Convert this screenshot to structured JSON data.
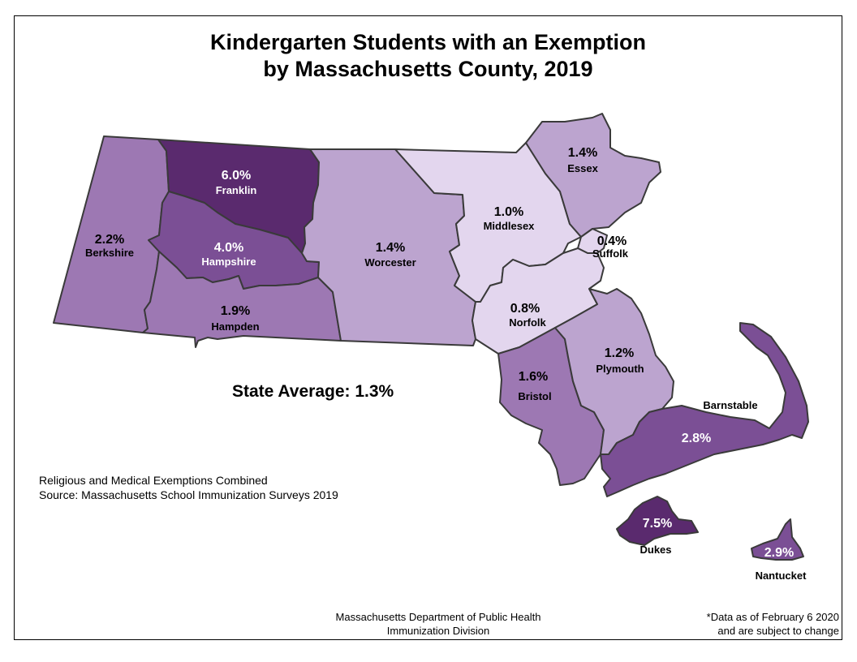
{
  "title": {
    "line1": "Kindergarten Students with an Exemption",
    "line2": "by Massachusetts County, 2019"
  },
  "state_average": "State Average: 1.3%",
  "notes": {
    "line1": "Religious and Medical Exemptions Combined",
    "line2": "Source: Massachusetts School Immunization Surveys 2019"
  },
  "footer": {
    "line1": "Massachusetts Department of Public Health",
    "line2": "Immunization Division"
  },
  "disclaimer": {
    "line1": "*Data as of February 6 2020",
    "line2": "and are subject to change"
  },
  "colors": {
    "shade_1": "#e3d6ee",
    "shade_2": "#bca4cf",
    "shade_3": "#9d78b3",
    "shade_4": "#7b4f95",
    "shade_5": "#5a2a6e",
    "border": "#3a3a3a"
  },
  "counties": {
    "berkshire": {
      "name": "Berkshire",
      "pct": "2.2%",
      "value": 2.2,
      "fill": "#9d78b3"
    },
    "franklin": {
      "name": "Franklin",
      "pct": "6.0%",
      "value": 6.0,
      "fill": "#5a2a6e"
    },
    "hampshire": {
      "name": "Hampshire",
      "pct": "4.0%",
      "value": 4.0,
      "fill": "#7b4f95"
    },
    "hampden": {
      "name": "Hampden",
      "pct": "1.9%",
      "value": 1.9,
      "fill": "#9d78b3"
    },
    "worcester": {
      "name": "Worcester",
      "pct": "1.4%",
      "value": 1.4,
      "fill": "#bca4cf"
    },
    "middlesex": {
      "name": "Middlesex",
      "pct": "1.0%",
      "value": 1.0,
      "fill": "#e3d6ee"
    },
    "essex": {
      "name": "Essex",
      "pct": "1.4%",
      "value": 1.4,
      "fill": "#bca4cf"
    },
    "suffolk": {
      "name": "Suffolk",
      "pct": "0.4%",
      "value": 0.4,
      "fill": "#e3d6ee"
    },
    "norfolk": {
      "name": "Norfolk",
      "pct": "0.8%",
      "value": 0.8,
      "fill": "#e3d6ee"
    },
    "bristol": {
      "name": "Bristol",
      "pct": "1.6%",
      "value": 1.6,
      "fill": "#9d78b3"
    },
    "plymouth": {
      "name": "Plymouth",
      "pct": "1.2%",
      "value": 1.2,
      "fill": "#bca4cf"
    },
    "barnstable": {
      "name": "Barnstable",
      "pct": "2.8%",
      "value": 2.8,
      "fill": "#7b4f95"
    },
    "dukes": {
      "name": "Dukes",
      "pct": "7.5%",
      "value": 7.5,
      "fill": "#5a2a6e"
    },
    "nantucket": {
      "name": "Nantucket",
      "pct": "2.9%",
      "value": 2.9,
      "fill": "#7b4f95"
    }
  }
}
